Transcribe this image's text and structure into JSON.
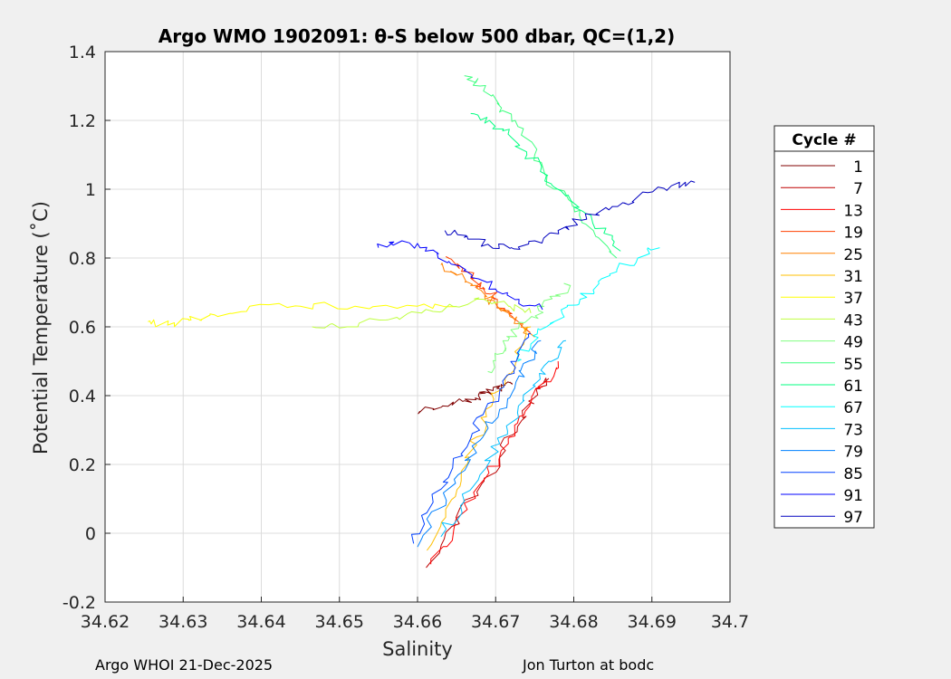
{
  "chart_data": {
    "type": "line",
    "title": "Argo WMO 1902091: θ-S below 500 dbar,  QC=(1,2)",
    "xlabel": "Salinity",
    "ylabel": "Potential Temperature (˚C)",
    "xlim": [
      34.62,
      34.7
    ],
    "ylim": [
      -0.2,
      1.4
    ],
    "x_ticks": [
      "34.62",
      "34.63",
      "34.64",
      "34.65",
      "34.66",
      "34.67",
      "34.68",
      "34.69",
      "34.7"
    ],
    "y_ticks": [
      "-0.2",
      "0",
      "0.2",
      "0.4",
      "0.6",
      "0.8",
      "1",
      "1.2",
      "1.4"
    ],
    "grid": true,
    "legend_title": "Cycle #",
    "legend_position": "outside-right",
    "series": [
      {
        "name": "1",
        "color": "#800000",
        "x": [
          34.6603,
          34.6632,
          34.666,
          34.6678,
          34.669,
          34.6702,
          34.6712,
          34.6718
        ],
        "y": [
          0.355,
          0.37,
          0.385,
          0.4,
          0.41,
          0.42,
          0.43,
          0.44
        ]
      },
      {
        "name": "7",
        "color": "#bf0000",
        "x": [
          34.6611,
          34.6644,
          34.6676,
          34.6705,
          34.6728,
          34.6745,
          34.6757,
          34.6768
        ],
        "y": [
          -0.1,
          0.02,
          0.12,
          0.22,
          0.31,
          0.38,
          0.42,
          0.45
        ]
      },
      {
        "name": "13",
        "color": "#ff0000",
        "x": [
          34.6617,
          34.6648,
          34.6679,
          34.6707,
          34.6728,
          34.6746,
          34.6763,
          34.678
        ],
        "y": [
          -0.09,
          0.03,
          0.14,
          0.24,
          0.32,
          0.39,
          0.44,
          0.5
        ]
      },
      {
        "name": "19",
        "color": "#ff4000",
        "x": [
          34.664,
          34.6658,
          34.6672,
          34.6686,
          34.6699,
          34.6712,
          34.6726,
          34.674
        ],
        "y": [
          0.8,
          0.77,
          0.74,
          0.71,
          0.68,
          0.65,
          0.62,
          0.59
        ]
      },
      {
        "name": "25",
        "color": "#ff8000",
        "x": [
          34.663,
          34.665,
          34.6668,
          34.6686,
          34.6702,
          34.6718,
          34.6734,
          34.675
        ],
        "y": [
          0.78,
          0.75,
          0.72,
          0.69,
          0.66,
          0.63,
          0.6,
          0.57
        ]
      },
      {
        "name": "31",
        "color": "#ffbf00",
        "x": [
          34.6612,
          34.6636,
          34.6656,
          34.6676,
          34.6695,
          34.6712,
          34.6728,
          34.6745
        ],
        "y": [
          -0.05,
          0.07,
          0.18,
          0.28,
          0.37,
          0.45,
          0.52,
          0.6
        ]
      },
      {
        "name": "37",
        "color": "#ffff00",
        "x": [
          34.6255,
          34.628,
          34.631,
          34.634,
          34.6385,
          34.645,
          34.652,
          34.66,
          34.665
        ],
        "y": [
          0.615,
          0.605,
          0.62,
          0.635,
          0.66,
          0.66,
          0.66,
          0.66,
          0.66
        ]
      },
      {
        "name": "43",
        "color": "#bfff40",
        "x": [
          34.6465,
          34.651,
          34.656,
          34.6605,
          34.6645,
          34.6685,
          34.6718,
          34.6745
        ],
        "y": [
          0.6,
          0.6,
          0.62,
          0.64,
          0.66,
          0.68,
          0.66,
          0.64
        ]
      },
      {
        "name": "49",
        "color": "#80ff80",
        "x": [
          34.669,
          34.6702,
          34.6716,
          34.673,
          34.6746,
          34.6762,
          34.6778,
          34.6795
        ],
        "y": [
          0.47,
          0.52,
          0.56,
          0.6,
          0.63,
          0.66,
          0.69,
          0.72
        ]
      },
      {
        "name": "55",
        "color": "#40ff80",
        "x": [
          34.666,
          34.668,
          34.6702,
          34.6725,
          34.675,
          34.6775,
          34.68,
          34.6825,
          34.6855
        ],
        "y": [
          1.33,
          1.3,
          1.25,
          1.2,
          1.1,
          1.0,
          0.95,
          0.88,
          0.8
        ]
      },
      {
        "name": "61",
        "color": "#00ff80",
        "x": [
          34.6668,
          34.6692,
          34.6716,
          34.674,
          34.6765,
          34.679,
          34.6815,
          34.684,
          34.686
        ],
        "y": [
          1.22,
          1.2,
          1.16,
          1.1,
          1.04,
          0.98,
          0.93,
          0.88,
          0.82
        ]
      },
      {
        "name": "67",
        "color": "#00ffff",
        "x": [
          34.6728,
          34.6745,
          34.6765,
          34.6785,
          34.6808,
          34.683,
          34.6855,
          34.6882,
          34.691
        ],
        "y": [
          0.5,
          0.55,
          0.6,
          0.64,
          0.68,
          0.72,
          0.76,
          0.8,
          0.83
        ]
      },
      {
        "name": "73",
        "color": "#00bfff",
        "x": [
          34.663,
          34.6655,
          34.668,
          34.6705,
          34.6728,
          34.6748,
          34.6768,
          34.679
        ],
        "y": [
          -0.01,
          0.08,
          0.17,
          0.26,
          0.35,
          0.43,
          0.5,
          0.56
        ]
      },
      {
        "name": "79",
        "color": "#0080ff",
        "x": [
          34.66,
          34.6626,
          34.6652,
          34.668,
          34.6705,
          34.6726,
          34.6742,
          34.6758
        ],
        "y": [
          -0.04,
          0.07,
          0.17,
          0.27,
          0.36,
          0.44,
          0.5,
          0.56
        ]
      },
      {
        "name": "85",
        "color": "#0040ff",
        "x": [
          34.6595,
          34.662,
          34.6645,
          34.667,
          34.6694,
          34.6715,
          34.673,
          34.6745
        ],
        "y": [
          -0.03,
          0.09,
          0.19,
          0.29,
          0.38,
          0.46,
          0.52,
          0.58
        ]
      },
      {
        "name": "91",
        "color": "#0000ff",
        "x": [
          34.655,
          34.658,
          34.661,
          34.664,
          34.667,
          34.67,
          34.673,
          34.676
        ],
        "y": [
          0.83,
          0.85,
          0.82,
          0.79,
          0.75,
          0.71,
          0.68,
          0.65
        ]
      },
      {
        "name": "97",
        "color": "#0000bf",
        "x": [
          34.6635,
          34.666,
          34.669,
          34.672,
          34.675,
          34.678,
          34.681,
          34.6845,
          34.6865,
          34.6895,
          34.6925,
          34.6955
        ],
        "y": [
          0.88,
          0.86,
          0.84,
          0.83,
          0.85,
          0.88,
          0.91,
          0.94,
          0.96,
          0.99,
          1.01,
          1.02
        ]
      }
    ]
  },
  "footer": {
    "left": "Argo WHOI 21-Dec-2025",
    "right": "Jon Turton at bodc"
  }
}
